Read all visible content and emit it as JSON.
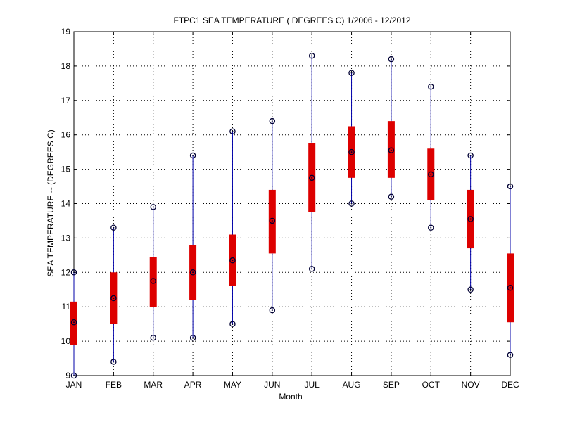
{
  "chart_data": {
    "type": "boxplot",
    "title": "FTPC1  SEA TEMPERATURE ( DEGREES C) 1/2006 - 12/2012",
    "xlabel": "Month",
    "ylabel": "SEA TEMPERATURE -- (DEGREES C)",
    "ylim": [
      9,
      19
    ],
    "yticks": [
      "9",
      "10",
      "11",
      "12",
      "13",
      "14",
      "15",
      "16",
      "17",
      "18",
      "19"
    ],
    "grid": true,
    "colors": {
      "whisker": "#0000aa",
      "box": "#dd0000",
      "marker": "#000033",
      "grid": "#000000"
    },
    "categories": [
      "JAN",
      "FEB",
      "MAR",
      "APR",
      "MAY",
      "JUN",
      "JUL",
      "AUG",
      "SEP",
      "OCT",
      "NOV",
      "DEC"
    ],
    "series": [
      {
        "min": 9.0,
        "q1": 9.9,
        "median": 10.55,
        "q3": 11.15,
        "max": 12.0
      },
      {
        "min": 9.4,
        "q1": 10.5,
        "median": 11.25,
        "q3": 12.0,
        "max": 13.3
      },
      {
        "min": 10.1,
        "q1": 11.0,
        "median": 11.75,
        "q3": 12.45,
        "max": 13.9
      },
      {
        "min": 10.1,
        "q1": 11.2,
        "median": 12.0,
        "q3": 12.8,
        "max": 15.4
      },
      {
        "min": 10.5,
        "q1": 11.6,
        "median": 12.35,
        "q3": 13.1,
        "max": 16.1
      },
      {
        "min": 10.9,
        "q1": 12.55,
        "median": 13.5,
        "q3": 14.4,
        "max": 16.4
      },
      {
        "min": 12.1,
        "q1": 13.75,
        "median": 14.75,
        "q3": 15.75,
        "max": 18.3
      },
      {
        "min": 14.0,
        "q1": 14.75,
        "median": 15.5,
        "q3": 16.25,
        "max": 17.8
      },
      {
        "min": 14.2,
        "q1": 14.75,
        "median": 15.55,
        "q3": 16.4,
        "max": 18.2
      },
      {
        "min": 13.3,
        "q1": 14.1,
        "median": 14.85,
        "q3": 15.6,
        "max": 17.4
      },
      {
        "min": 11.5,
        "q1": 12.7,
        "median": 13.55,
        "q3": 14.4,
        "max": 15.4
      },
      {
        "min": 9.6,
        "q1": 10.55,
        "median": 11.55,
        "q3": 12.55,
        "max": 14.5
      }
    ]
  }
}
